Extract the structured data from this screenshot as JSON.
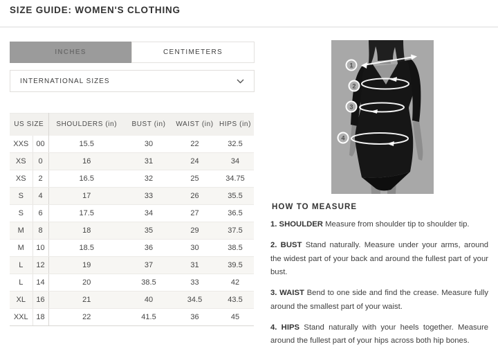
{
  "header": {
    "title": "SIZE GUIDE: WOMEN'S CLOTHING"
  },
  "unit_tabs": [
    {
      "label": "INCHES",
      "active": true
    },
    {
      "label": "CENTIMETERS",
      "active": false
    }
  ],
  "sizes_dropdown": {
    "selected": "INTERNATIONAL SIZES"
  },
  "size_table": {
    "headers": {
      "us_size": "US SIZE",
      "shoulders": "SHOULDERS (in)",
      "bust": "BUST (in)",
      "waist": "WAIST (in)",
      "hips": "HIPS (in)"
    },
    "rows": [
      {
        "size": "XXS",
        "us": "00",
        "shoulders": "15.5",
        "bust": "30",
        "waist": "22",
        "hips": "32.5"
      },
      {
        "size": "XS",
        "us": "0",
        "shoulders": "16",
        "bust": "31",
        "waist": "24",
        "hips": "34"
      },
      {
        "size": "XS",
        "us": "2",
        "shoulders": "16.5",
        "bust": "32",
        "waist": "25",
        "hips": "34.75"
      },
      {
        "size": "S",
        "us": "4",
        "shoulders": "17",
        "bust": "33",
        "waist": "26",
        "hips": "35.5"
      },
      {
        "size": "S",
        "us": "6",
        "shoulders": "17.5",
        "bust": "34",
        "waist": "27",
        "hips": "36.5"
      },
      {
        "size": "M",
        "us": "8",
        "shoulders": "18",
        "bust": "35",
        "waist": "29",
        "hips": "37.5"
      },
      {
        "size": "M",
        "us": "10",
        "shoulders": "18.5",
        "bust": "36",
        "waist": "30",
        "hips": "38.5"
      },
      {
        "size": "L",
        "us": "12",
        "shoulders": "19",
        "bust": "37",
        "waist": "31",
        "hips": "39.5"
      },
      {
        "size": "L",
        "us": "14",
        "shoulders": "20",
        "bust": "38.5",
        "waist": "33",
        "hips": "42"
      },
      {
        "size": "XL",
        "us": "16",
        "shoulders": "21",
        "bust": "40",
        "waist": "34.5",
        "hips": "43.5"
      },
      {
        "size": "XXL",
        "us": "18",
        "shoulders": "22",
        "bust": "41.5",
        "waist": "36",
        "hips": "45"
      }
    ]
  },
  "figure": {
    "badges": [
      "1",
      "2",
      "3",
      "4"
    ]
  },
  "how_to_measure": {
    "heading": "HOW TO MEASURE",
    "steps": [
      {
        "lead": "1. SHOULDER",
        "text": "Measure from shoulder tip to shoulder tip."
      },
      {
        "lead": "2. BUST",
        "text": "Stand naturally. Measure under your arms, around the widest part of your back and around the fullest part of your bust."
      },
      {
        "lead": "3. WAIST",
        "text": "Bend to one side and find the crease. Measure fully around the smallest part of your waist."
      },
      {
        "lead": "4. HIPS",
        "text": "Stand naturally with your heels together. Measure around the fullest part of your hips across both hip bones."
      }
    ]
  },
  "colors": {
    "active_tab_bg": "#9b9b9b",
    "active_tab_text": "#6f6f6f",
    "table_header_bg": "#f2f1ee",
    "row_stripe_bg": "#f7f6f3",
    "border": "#ececec",
    "figure_bg": "#a8a8a8",
    "text_dark": "#333333"
  }
}
